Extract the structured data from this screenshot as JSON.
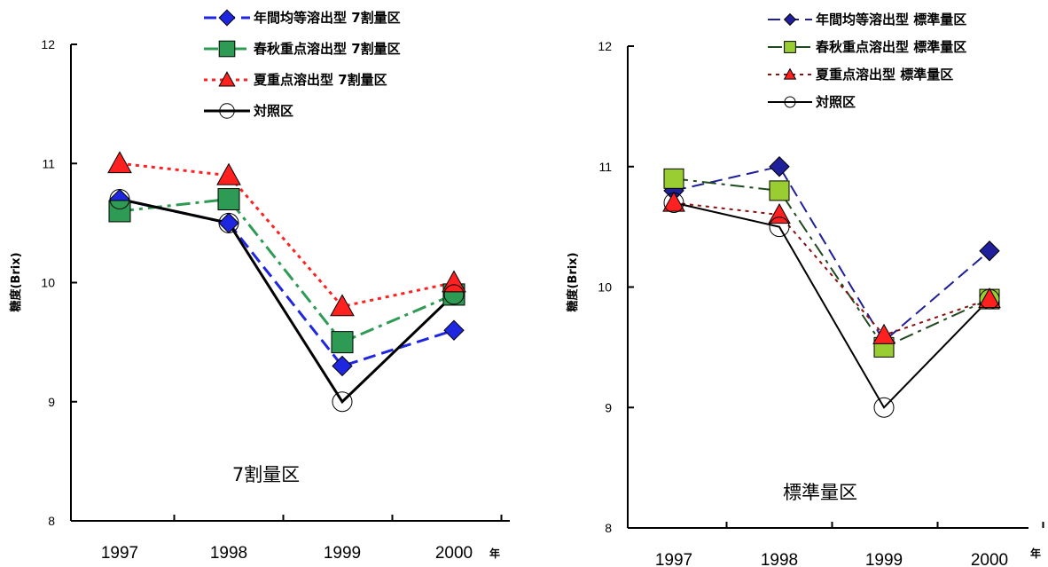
{
  "chart_data": [
    {
      "type": "line",
      "annotation": "7割量区",
      "ylabel": "糖度(Brix)",
      "x_unit": "年",
      "categories": [
        "1997",
        "1998",
        "1999",
        "2000"
      ],
      "ylim": [
        8,
        12
      ],
      "yticks": [
        "8",
        "9",
        "10",
        "11",
        "12"
      ],
      "series": [
        {
          "name": "年間均等溶出型 7割量区",
          "values": [
            10.7,
            10.5,
            9.3,
            9.6
          ],
          "color": "#1f26e0",
          "marker": "diamond",
          "dash": "dash"
        },
        {
          "name": "春秋重点溶出型 7割量区",
          "values": [
            10.6,
            10.7,
            9.5,
            9.9
          ],
          "color": "#2e9b55",
          "marker": "square",
          "dash": "dashdot"
        },
        {
          "name": "夏重点溶出型 7割量区",
          "values": [
            11.0,
            10.9,
            9.8,
            10.0
          ],
          "color": "#ff2020",
          "marker": "triangle",
          "dash": "dot"
        },
        {
          "name": "対照区",
          "values": [
            10.7,
            10.5,
            9.0,
            9.9
          ],
          "color": "#000000",
          "marker": "circle",
          "dash": "solid"
        }
      ]
    },
    {
      "type": "line",
      "annotation": "標準量区",
      "ylabel": "糖度(Brix)",
      "x_unit": "年",
      "categories": [
        "1997",
        "1998",
        "1999",
        "2000"
      ],
      "ylim": [
        8,
        12
      ],
      "yticks": [
        "8",
        "9",
        "10",
        "11",
        "12"
      ],
      "series": [
        {
          "name": "年間均等溶出型 標準量区",
          "values": [
            10.8,
            11.0,
            9.55,
            10.3
          ],
          "color": "#1f1f99",
          "marker": "diamond",
          "dash": "dash"
        },
        {
          "name": "春秋重点溶出型 標準量区",
          "values": [
            10.9,
            10.8,
            9.5,
            9.9
          ],
          "color": "#9acd32",
          "marker": "square",
          "dash": "dashdot",
          "line_color": "#1f4a1f"
        },
        {
          "name": "夏重点溶出型 標準量区",
          "values": [
            10.7,
            10.6,
            9.6,
            9.9
          ],
          "color": "#ff2020",
          "marker": "triangle",
          "dash": "dot",
          "line_color": "#8b1010"
        },
        {
          "name": "対照区",
          "values": [
            10.7,
            10.5,
            9.0,
            9.9
          ],
          "color": "#000000",
          "marker": "circle",
          "dash": "solid"
        }
      ]
    }
  ]
}
